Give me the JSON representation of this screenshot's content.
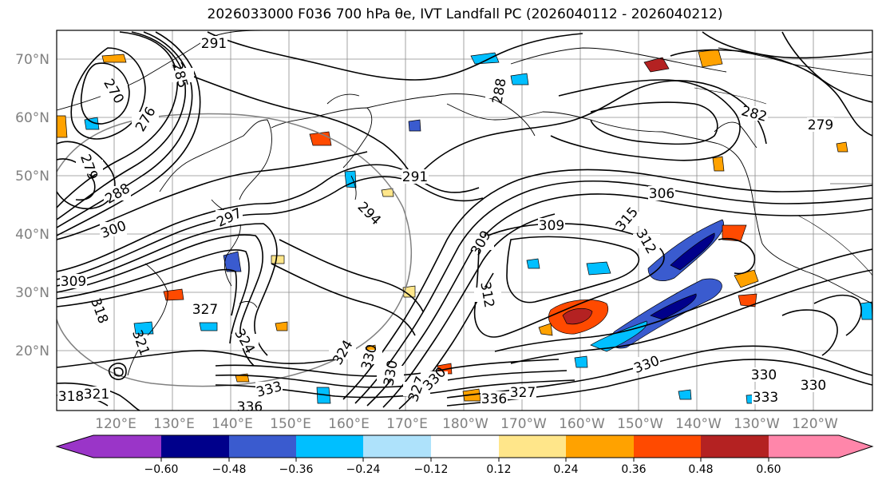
{
  "figure": {
    "title": "2026033000 F036 700 hPa θe, IVT Landfall PC (2026040112 - 2026040212)"
  },
  "map": {
    "lat_ticks": [
      "70°N",
      "60°N",
      "50°N",
      "40°N",
      "30°N",
      "20°N"
    ],
    "lon_ticks": [
      "120°E",
      "130°E",
      "140°E",
      "150°E",
      "160°E",
      "170°E",
      "180°W",
      "170°W",
      "160°W",
      "150°W",
      "140°W",
      "130°W",
      "120°W"
    ],
    "contour_labels": [
      "291",
      "270",
      "285",
      "276",
      "279",
      "288",
      "288",
      "282",
      "279",
      "291",
      "294",
      "300",
      "297",
      "309",
      "309",
      "306",
      "309",
      "315",
      "312",
      "312",
      "318",
      "327",
      "324",
      "321",
      "324",
      "330",
      "327",
      "330",
      "318",
      "321",
      "336",
      "333",
      "330",
      "336",
      "327",
      "330",
      "330",
      "333",
      "330"
    ],
    "colors": {
      "coast": "#000000",
      "grid": "#7f7f7f",
      "contour": "#000000",
      "circle": "#808080"
    }
  },
  "colorbar": {
    "tick_labels": [
      "−0.60",
      "−0.48",
      "−0.36",
      "−0.24",
      "−0.12",
      "0.12",
      "0.24",
      "0.36",
      "0.48",
      "0.60"
    ],
    "colors": [
      "#9a35c8",
      "#00008b",
      "#3a5bcf",
      "#00bfff",
      "#aee2fb",
      "#ffffff",
      "#ffe68a",
      "#ffa200",
      "#ff4a00",
      "#b42222",
      "#ff86aa"
    ]
  }
}
